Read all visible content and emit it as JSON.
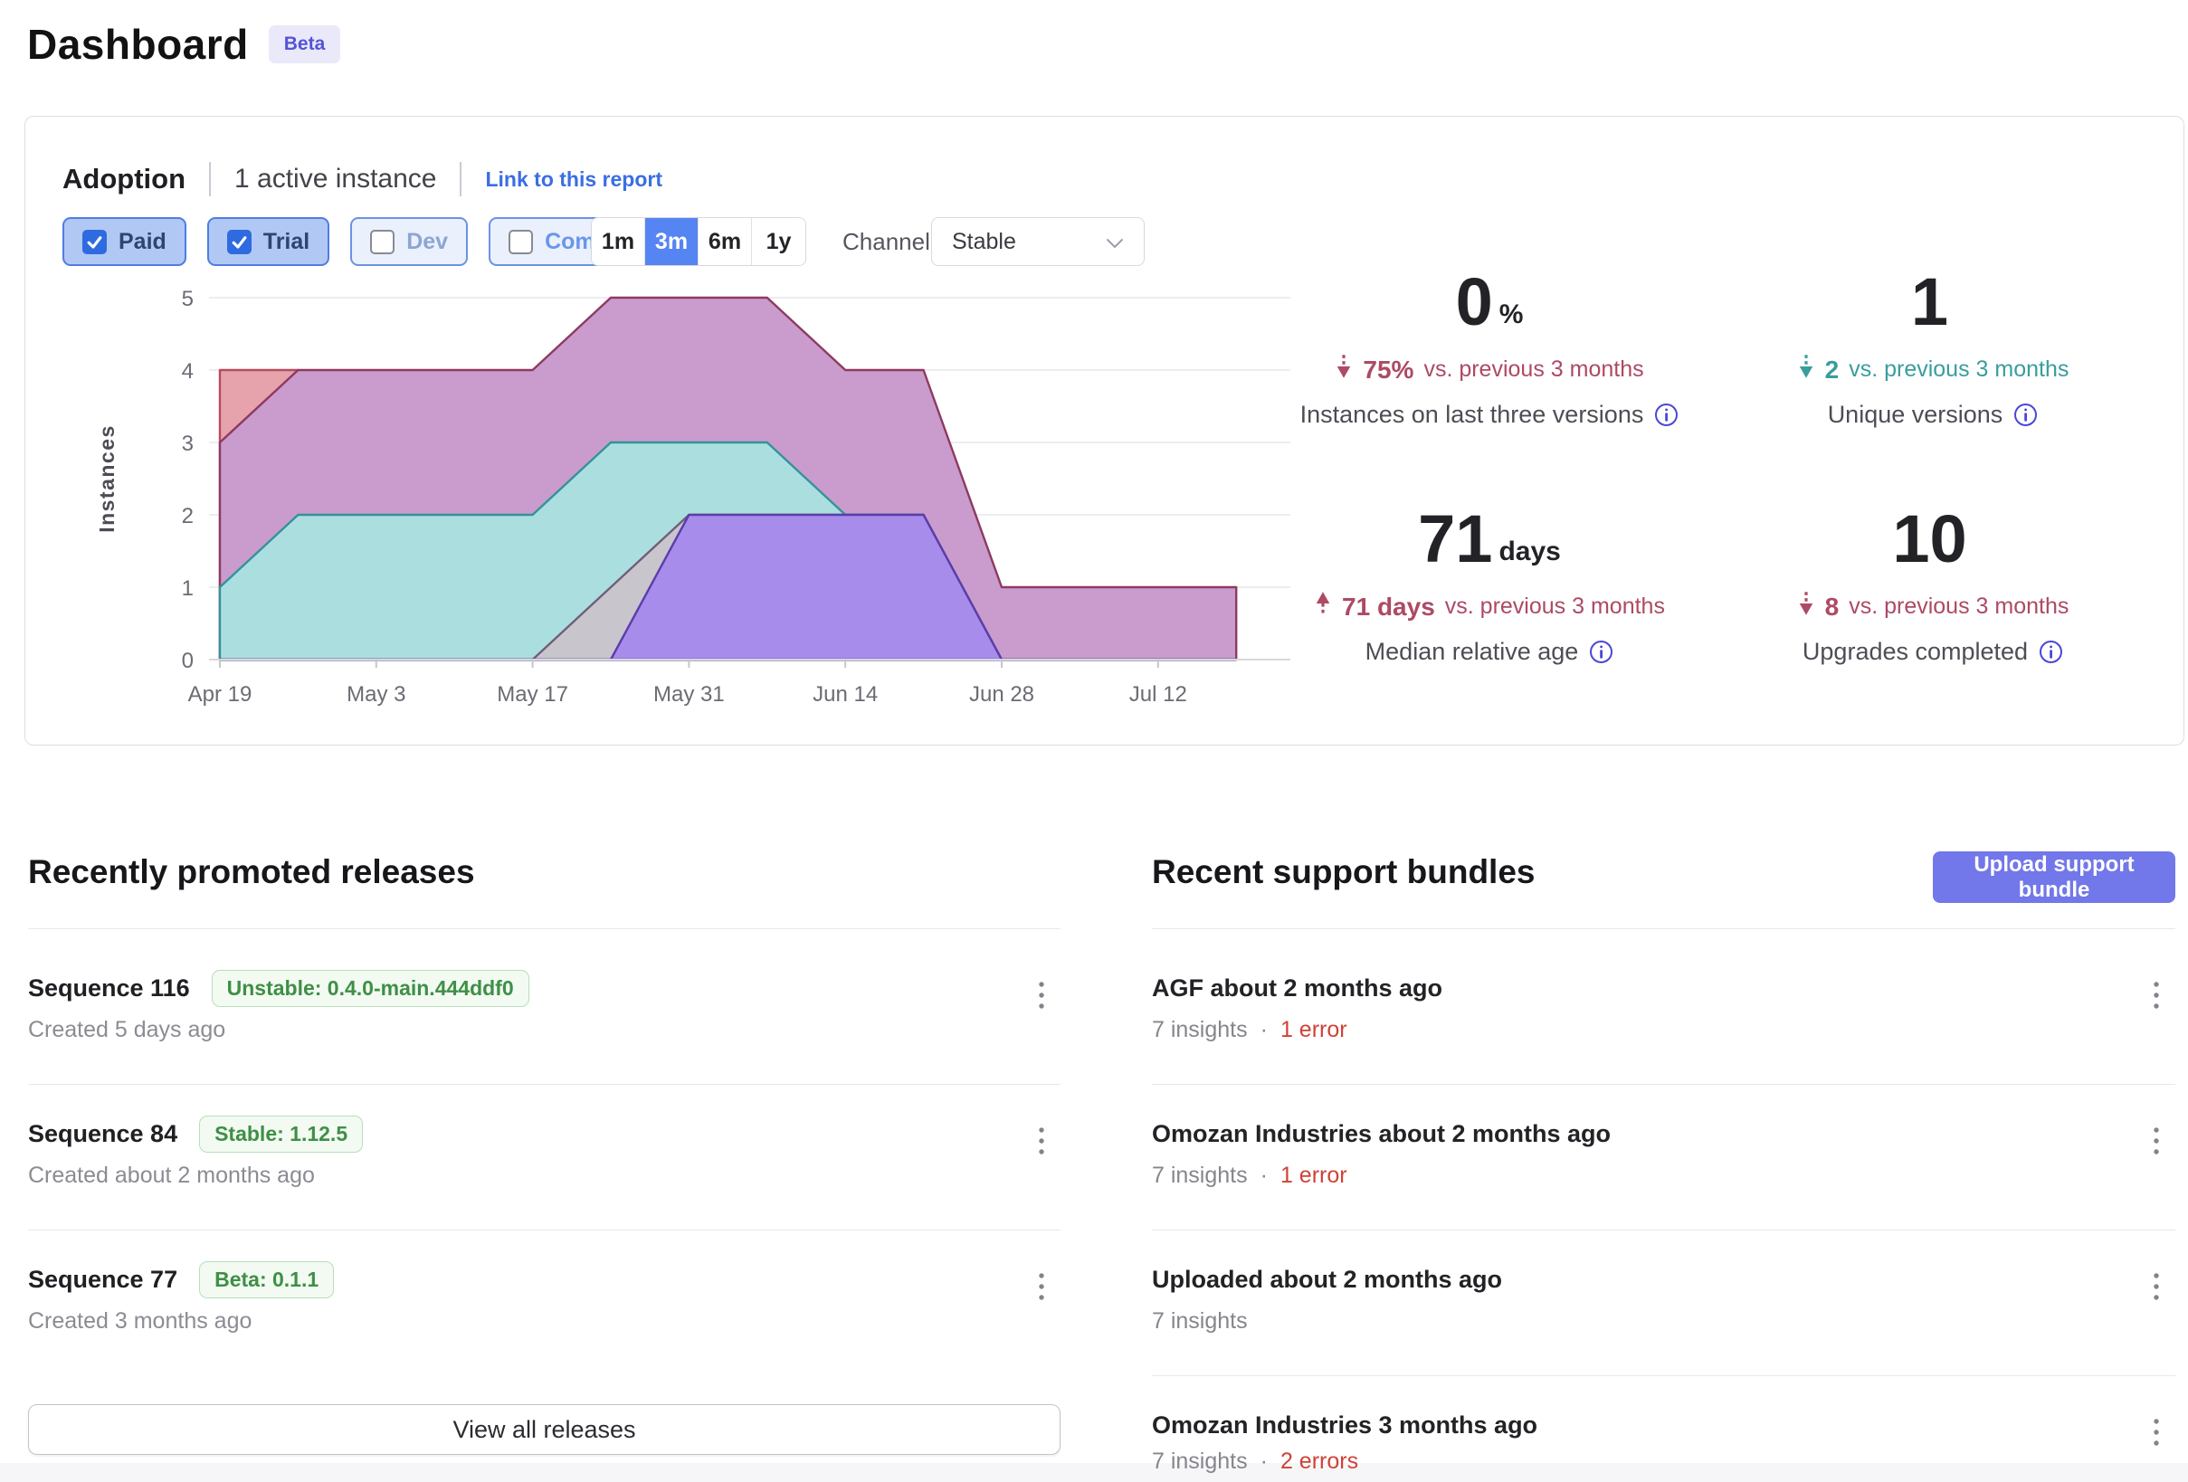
{
  "page": {
    "title": "Dashboard",
    "beta_badge": "Beta"
  },
  "adoption": {
    "title": "Adoption",
    "active_instances": "1 active instance",
    "link": "Link to this report",
    "filters": [
      {
        "label": "Paid",
        "checked": true
      },
      {
        "label": "Trial",
        "checked": true
      },
      {
        "label": "Dev",
        "checked": false
      },
      {
        "label": "Community",
        "checked": false
      }
    ],
    "ranges": {
      "options": [
        "1m",
        "3m",
        "6m",
        "1y"
      ],
      "selected": "3m"
    },
    "channel_label": "Channel",
    "channel_value": "Stable",
    "stats": [
      {
        "value": "0",
        "suffix": "%",
        "change_dir": "down",
        "change_tone": "red",
        "change_strong": "75%",
        "change_rest": "vs. previous 3 months",
        "label": "Instances on last three versions"
      },
      {
        "value": "1",
        "suffix": "",
        "change_dir": "down",
        "change_tone": "teal",
        "change_strong": "2",
        "change_rest": "vs. previous 3 months",
        "label": "Unique versions"
      },
      {
        "value": "71",
        "suffix": "days",
        "change_dir": "up",
        "change_tone": "red",
        "change_strong": "71 days",
        "change_rest": "vs. previous 3 months",
        "label": "Median relative age"
      },
      {
        "value": "10",
        "suffix": "",
        "change_dir": "down",
        "change_tone": "red",
        "change_strong": "8",
        "change_rest": "vs. previous 3 months",
        "label": "Upgrades completed"
      }
    ]
  },
  "chart_data": {
    "type": "area",
    "ylabel": "Instances",
    "ylim": [
      0,
      5
    ],
    "grid": true,
    "legend": false,
    "x_days": [
      0,
      7,
      14,
      21,
      28,
      35,
      42,
      49,
      56,
      63,
      70,
      77,
      84,
      91
    ],
    "x_tick_days": [
      0,
      14,
      28,
      42,
      56,
      70,
      84
    ],
    "x_ticks": [
      "Apr 19",
      "May 3",
      "May 17",
      "May 31",
      "Jun 14",
      "Jun 28",
      "Jul 12"
    ],
    "y_ticks": [
      0,
      1,
      2,
      3,
      4,
      5
    ],
    "series": [
      {
        "name": "version-salmon",
        "fill": "#e7a3ac",
        "stroke": "#b84a5f",
        "values": [
          4,
          4,
          0,
          0,
          0,
          0,
          0,
          0,
          0,
          0,
          0,
          0,
          0,
          0
        ]
      },
      {
        "name": "version-mauve",
        "fill": "#c99ccd",
        "stroke": "#8d3a60",
        "values": [
          3,
          4,
          4,
          4,
          4,
          5,
          5,
          5,
          4,
          4,
          1,
          1,
          1,
          1
        ]
      },
      {
        "name": "version-teal",
        "fill": "#abdfdf",
        "stroke": "#35929b",
        "values": [
          1,
          2,
          2,
          2,
          2,
          3,
          3,
          3,
          2,
          2,
          0,
          0,
          0,
          0
        ]
      },
      {
        "name": "version-gray",
        "fill": "#c9c5cd",
        "stroke": "#6f5f78",
        "values": [
          0,
          0,
          0,
          0,
          0,
          1,
          2,
          2,
          2,
          2,
          0,
          0,
          0,
          0
        ]
      },
      {
        "name": "version-purple",
        "fill": "#a78cec",
        "stroke": "#5b3daa",
        "values": [
          0,
          0,
          0,
          0,
          0,
          0,
          2,
          2,
          2,
          2,
          0,
          0,
          0,
          0
        ]
      }
    ]
  },
  "releases": {
    "heading": "Recently promoted releases",
    "view_all": "View all releases",
    "items": [
      {
        "title": "Sequence 116",
        "badge": "Unstable: 0.4.0-main.444ddf0",
        "created": "Created 5 days ago"
      },
      {
        "title": "Sequence 84",
        "badge": "Stable: 1.12.5",
        "created": "Created about 2 months ago"
      },
      {
        "title": "Sequence 77",
        "badge": "Beta: 0.1.1",
        "created": "Created 3 months ago"
      }
    ]
  },
  "bundles": {
    "heading": "Recent support bundles",
    "upload_button": "Upload support bundle",
    "items": [
      {
        "title": "AGF about 2 months ago",
        "insights": "7 insights",
        "sep": "·",
        "errors": "1 error"
      },
      {
        "title": "Omozan Industries about 2 months ago",
        "insights": "7 insights",
        "sep": "·",
        "errors": "1 error"
      },
      {
        "title": "Uploaded about 2 months ago",
        "insights": "7 insights",
        "sep": null,
        "errors": null
      },
      {
        "title": "Omozan Industries 3 months ago",
        "insights": "7 insights",
        "sep": "·",
        "errors": "2 errors"
      }
    ]
  },
  "colors": {
    "accent_blue": "#5585f2",
    "link_blue": "#3b6ee2",
    "indigo_button": "#7277e9",
    "badge_green": "#3f8f45",
    "error_red": "#cf4238",
    "stat_red": "#ad4a64",
    "stat_teal": "#3a9d9d",
    "info_icon_blue": "#4a47d6"
  }
}
